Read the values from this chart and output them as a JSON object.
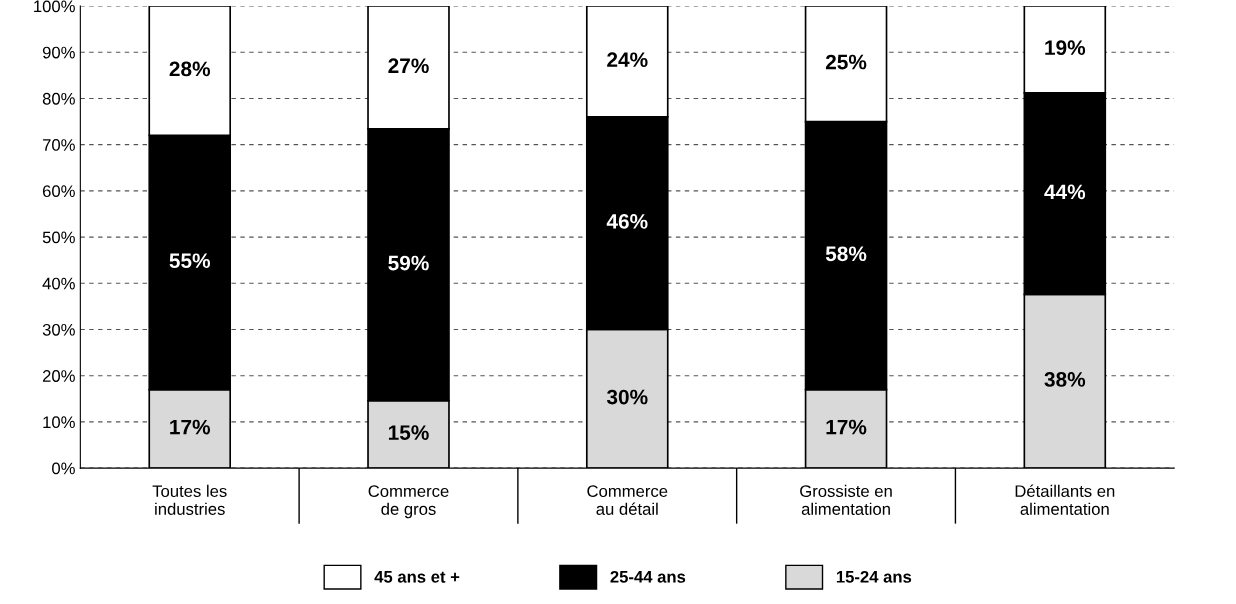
{
  "chart_data": {
    "type": "bar",
    "stacked": true,
    "categories": [
      "Toutes les\nindustries",
      "Commerce\nde gros",
      "Commerce\nau détail",
      "Grossiste en\nalimentation",
      "Détaillants en\nalimentation"
    ],
    "series": [
      {
        "name": "15-24 ans",
        "color": "#d9d9d9",
        "values": [
          17,
          14.6,
          30,
          17,
          37.6
        ],
        "value_labels": [
          "17%",
          "15%",
          "30%",
          "17%",
          "38%"
        ]
      },
      {
        "name": "25-44 ans",
        "color": "#000000",
        "values": [
          55,
          58.8,
          46,
          58,
          43.6
        ],
        "value_labels": [
          "55%",
          "59%",
          "46%",
          "58%",
          "44%"
        ]
      },
      {
        "name": "45 ans et +",
        "color": "#ffffff",
        "values": [
          28,
          26.6,
          24,
          25,
          18.8
        ],
        "value_labels": [
          "28%",
          "27%",
          "24%",
          "25%",
          "19%"
        ]
      }
    ],
    "ylim": [
      0,
      100
    ],
    "yticks": [
      {
        "value": 0,
        "label": "0%"
      },
      {
        "value": 10,
        "label": "10%"
      },
      {
        "value": 20,
        "label": "20%"
      },
      {
        "value": 30,
        "label": "30%"
      },
      {
        "value": 40,
        "label": "40%"
      },
      {
        "value": 50,
        "label": "50%"
      },
      {
        "value": 60,
        "label": "60%"
      },
      {
        "value": 70,
        "label": "70%"
      },
      {
        "value": 80,
        "label": "80%"
      },
      {
        "value": 90,
        "label": "90%"
      },
      {
        "value": 100,
        "label": "100%"
      }
    ],
    "grid": "y",
    "legend": "bottom"
  }
}
